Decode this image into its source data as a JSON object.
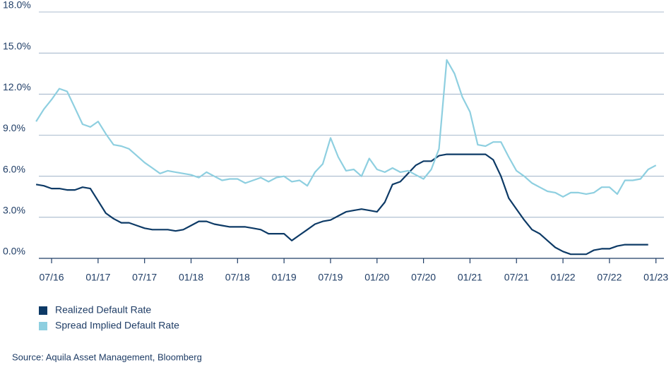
{
  "chart_data": {
    "type": "line",
    "categories": [
      null,
      null,
      "07/16",
      null,
      null,
      null,
      null,
      null,
      "01/17",
      null,
      null,
      null,
      null,
      null,
      "07/17",
      null,
      null,
      null,
      null,
      null,
      "01/18",
      null,
      null,
      null,
      null,
      null,
      "07/18",
      null,
      null,
      null,
      null,
      null,
      "01/19",
      null,
      null,
      null,
      null,
      null,
      "07/19",
      null,
      null,
      null,
      null,
      null,
      "01/20",
      null,
      null,
      null,
      null,
      null,
      "07/20",
      null,
      null,
      null,
      null,
      null,
      "01/21",
      null,
      null,
      null,
      null,
      null,
      "07/21",
      null,
      null,
      null,
      null,
      null,
      "01/22",
      null,
      null,
      null,
      null,
      null,
      "07/22",
      null,
      null,
      null,
      null,
      null,
      "01/23"
    ],
    "series": [
      {
        "name": "Realized Default Rate",
        "color": "#0d3a66",
        "values": [
          5.4,
          5.3,
          5.1,
          5.1,
          5.0,
          5.0,
          5.2,
          5.1,
          4.2,
          3.3,
          2.9,
          2.6,
          2.6,
          2.4,
          2.2,
          2.1,
          2.1,
          2.1,
          2.0,
          2.1,
          2.4,
          2.7,
          2.7,
          2.5,
          2.4,
          2.3,
          2.3,
          2.3,
          2.2,
          2.1,
          1.8,
          1.8,
          1.8,
          1.3,
          1.7,
          2.1,
          2.5,
          2.7,
          2.8,
          3.1,
          3.4,
          3.5,
          3.6,
          3.5,
          3.4,
          4.1,
          5.4,
          5.6,
          6.2,
          6.8,
          7.1,
          7.1,
          7.5,
          7.6,
          7.6,
          7.6,
          7.6,
          7.6,
          7.6,
          7.2,
          6.0,
          4.4,
          3.6,
          2.8,
          2.1,
          1.8,
          1.3,
          0.8,
          0.5,
          0.3,
          0.3,
          0.3,
          0.6,
          0.7,
          0.7,
          0.9,
          1.0,
          1.0,
          1.0,
          1.0,
          null
        ]
      },
      {
        "name": "Spread Implied Default Rate",
        "color": "#8ecfe0",
        "values": [
          10.0,
          10.9,
          11.6,
          12.4,
          12.2,
          11.0,
          9.8,
          9.6,
          10.0,
          9.1,
          8.3,
          8.2,
          8.0,
          7.5,
          7.0,
          6.6,
          6.2,
          6.4,
          6.3,
          6.2,
          6.1,
          5.9,
          6.3,
          6.0,
          5.7,
          5.8,
          5.8,
          5.5,
          5.7,
          5.9,
          5.6,
          5.9,
          6.0,
          5.6,
          5.7,
          5.3,
          6.3,
          6.9,
          8.8,
          7.4,
          6.4,
          6.5,
          6.0,
          7.3,
          6.5,
          6.3,
          6.6,
          6.3,
          6.4,
          6.1,
          5.8,
          6.5,
          8.0,
          14.5,
          13.5,
          11.8,
          10.7,
          8.3,
          8.2,
          8.5,
          8.5,
          7.4,
          6.4,
          6.0,
          5.5,
          5.2,
          4.9,
          4.8,
          4.5,
          4.8,
          4.8,
          4.7,
          4.8,
          5.2,
          5.2,
          4.7,
          5.7,
          5.7,
          5.8,
          6.5,
          6.8
        ]
      }
    ],
    "ylim": [
      0,
      18
    ],
    "yticks": [
      {
        "value": 0,
        "label": "0.0%"
      },
      {
        "value": 3,
        "label": "3.0%"
      },
      {
        "value": 6,
        "label": "6.0%"
      },
      {
        "value": 9,
        "label": "9.0%"
      },
      {
        "value": 12,
        "label": "12.0%"
      },
      {
        "value": 15,
        "label": "15.0%"
      },
      {
        "value": 18,
        "label": "18.0%"
      }
    ],
    "grid": true,
    "legend": "bottom-left",
    "source": "Source: Aquila Asset Management, Bloomberg"
  }
}
